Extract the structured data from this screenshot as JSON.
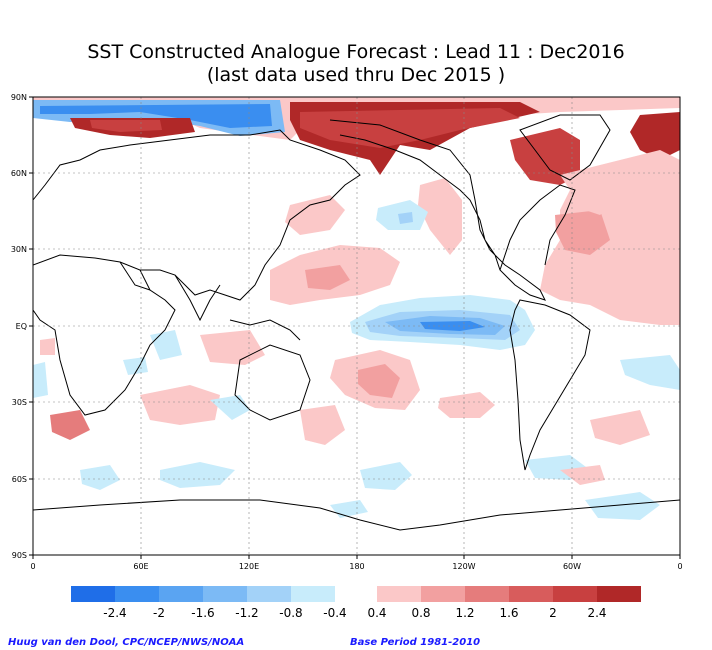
{
  "title": {
    "line1": "SST Constructed Analogue Forecast : Lead 11 : Dec2016",
    "line2": "(last data used thru Dec 2015 )"
  },
  "lat_labels": [
    "90N",
    "60N",
    "30N",
    "EQ",
    "30S",
    "60S",
    "90S"
  ],
  "lon_labels": [
    "0",
    "60E",
    "120E",
    "180",
    "120W",
    "60W",
    "0"
  ],
  "colorbar": {
    "negative_colors": [
      "#1f6ee8",
      "#3a8ef0",
      "#5aa4f2",
      "#7cbaf5",
      "#a3d2f8",
      "#c8ecfb"
    ],
    "positive_colors": [
      "#fbc8c8",
      "#f2a0a0",
      "#e57c7c",
      "#d85c5c",
      "#c84040",
      "#b02828"
    ],
    "labels": [
      "-2.4",
      "-2",
      "-1.6",
      "-1.2",
      "-0.8",
      "-0.4",
      "0.4",
      "0.8",
      "1.2",
      "1.6",
      "2",
      "2.4"
    ]
  },
  "credit_left": "Huug van den Dool, CPC/NCEP/NWS/NOAA",
  "credit_right": "Base Period 1981-2010"
}
